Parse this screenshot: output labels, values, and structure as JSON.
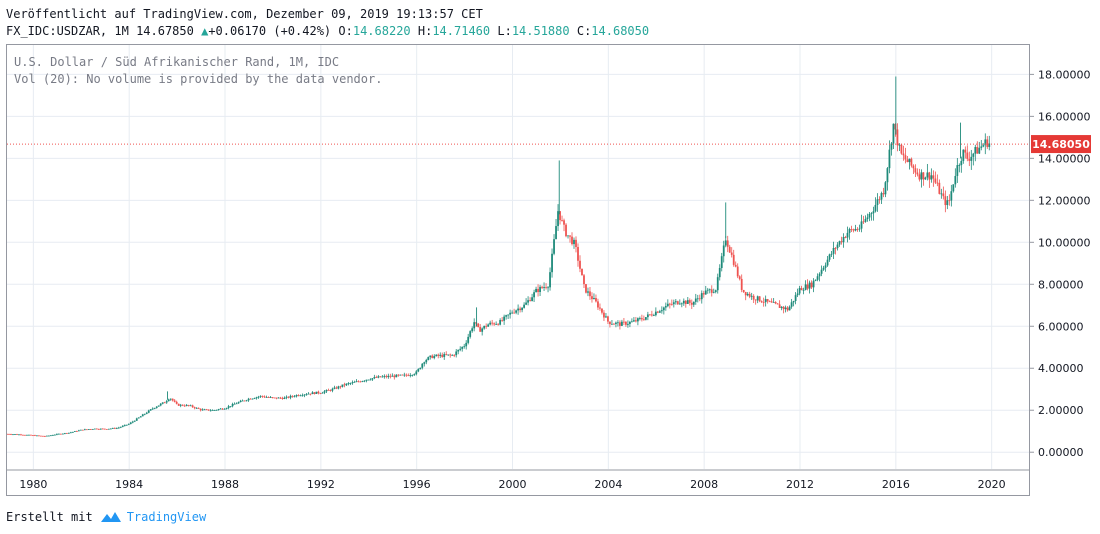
{
  "header": {
    "published": "Veröffentlicht auf TradingView.com, Dezember 09, 2019 19:13:57 CET",
    "symbol": "FX_IDC:USDZAR, 1M",
    "last": "14.67850",
    "change_arrow": "▲",
    "change": "+0.06170 (+0.42%)",
    "o_label": "O:",
    "o_value": "14.68220",
    "h_label": "H:",
    "h_value": "14.71460",
    "l_label": "L:",
    "l_value": "14.51880",
    "c_label": "C:",
    "c_value": "14.68050"
  },
  "legend": {
    "title": "U.S. Dollar / Süd Afrikanischer Rand, 1M, IDC",
    "volume_note": "Vol (20): No volume is provided by the data vendor."
  },
  "footer": {
    "created_with": "Erstellt mit",
    "brand": "TradingView"
  },
  "colors": {
    "up": "#26a69a",
    "down": "#ef5350",
    "up_fill": "#1e8a7a",
    "price_line": "#ef5350",
    "price_label_bg": "#e53935",
    "grid": "#e7ecf2",
    "axis_text": "#131722"
  },
  "chart_data": {
    "type": "line",
    "style": "candlestick",
    "interval": "1M",
    "x_ticks": [
      "1980",
      "1984",
      "1988",
      "1992",
      "1996",
      "2000",
      "2004",
      "2008",
      "2012",
      "2016",
      "2020"
    ],
    "y_ticks": [
      "0.00000",
      "2.00000",
      "4.00000",
      "6.00000",
      "8.00000",
      "10.00000",
      "12.00000",
      "14.00000",
      "16.00000",
      "18.00000"
    ],
    "ylim": [
      -0.8,
      19.4
    ],
    "xlim": [
      1978.9,
      2021.6
    ],
    "last_price_label": "14.68050",
    "last_price": 14.6805,
    "grid": true,
    "series": [
      {
        "x": [
          1978.9,
          1979.5,
          1980.0,
          1980.5,
          1981.0,
          1981.5,
          1982.0,
          1982.5,
          1983.0,
          1983.5,
          1984.0,
          1984.5,
          1985.0,
          1985.5,
          1985.7,
          1986.0,
          1986.5,
          1987.0,
          1987.5,
          1988.0,
          1988.5,
          1989.0,
          1989.5,
          1990.0,
          1990.5,
          1991.0,
          1991.5,
          1992.0,
          1992.5,
          1993.0,
          1993.5,
          1994.0,
          1994.5,
          1995.0,
          1995.5,
          1996.0,
          1996.3,
          1996.6,
          1997.0,
          1997.5,
          1998.0,
          1998.4,
          1998.6,
          1999.0,
          1999.5,
          2000.0,
          2000.5,
          2001.0,
          2001.5,
          2001.9,
          2002.2,
          2002.6,
          2003.0,
          2003.5,
          2004.0,
          2004.5,
          2005.0,
          2005.5,
          2006.0,
          2006.5,
          2007.0,
          2007.5,
          2008.0,
          2008.5,
          2008.9,
          2009.2,
          2009.6,
          2010.0,
          2010.5,
          2011.0,
          2011.5,
          2012.0,
          2012.5,
          2013.0,
          2013.5,
          2014.0,
          2014.5,
          2015.0,
          2015.5,
          2015.9,
          2016.2,
          2016.6,
          2017.0,
          2017.5,
          2018.0,
          2018.2,
          2018.5,
          2018.8,
          2019.0,
          2019.4,
          2019.8,
          2019.95
        ],
        "y": [
          0.87,
          0.84,
          0.8,
          0.76,
          0.86,
          0.93,
          1.06,
          1.12,
          1.11,
          1.15,
          1.35,
          1.72,
          2.1,
          2.4,
          2.6,
          2.25,
          2.22,
          2.02,
          2.0,
          2.1,
          2.35,
          2.55,
          2.67,
          2.58,
          2.58,
          2.72,
          2.8,
          2.85,
          3.0,
          3.22,
          3.35,
          3.5,
          3.58,
          3.62,
          3.65,
          3.8,
          4.35,
          4.55,
          4.6,
          4.62,
          5.1,
          6.2,
          5.8,
          6.1,
          6.2,
          6.7,
          7.0,
          7.7,
          8.0,
          11.5,
          10.5,
          9.9,
          7.8,
          7.1,
          6.2,
          6.1,
          6.2,
          6.4,
          6.7,
          7.0,
          7.2,
          7.1,
          7.6,
          7.8,
          10.2,
          9.2,
          7.7,
          7.4,
          7.2,
          7.0,
          6.8,
          7.8,
          8.0,
          8.9,
          9.8,
          10.5,
          10.7,
          11.5,
          12.5,
          15.6,
          14.2,
          13.7,
          13.2,
          13.2,
          12.0,
          11.8,
          13.4,
          14.3,
          14.0,
          14.4,
          14.8,
          14.68
        ]
      }
    ]
  }
}
